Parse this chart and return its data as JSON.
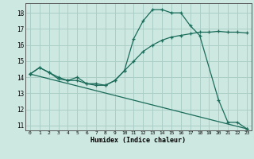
{
  "xlabel": "Humidex (Indice chaleur)",
  "bg_color": "#cce8e0",
  "grid_color": "#aacec6",
  "line_color": "#1a6b5a",
  "xlim": [
    -0.5,
    23.5
  ],
  "ylim": [
    10.7,
    18.6
  ],
  "yticks": [
    11,
    12,
    13,
    14,
    15,
    16,
    17,
    18
  ],
  "xticks": [
    0,
    1,
    2,
    3,
    4,
    5,
    6,
    7,
    8,
    9,
    10,
    11,
    12,
    13,
    14,
    15,
    16,
    17,
    18,
    19,
    20,
    21,
    22,
    23
  ],
  "series1_x": [
    0,
    1,
    2,
    3,
    4,
    5,
    6,
    7,
    8,
    9,
    10,
    11,
    12,
    13,
    14,
    15,
    16,
    17,
    18,
    20,
    21,
    22,
    23
  ],
  "series1_y": [
    14.2,
    14.6,
    14.3,
    14.0,
    13.8,
    13.8,
    13.6,
    13.6,
    13.5,
    13.8,
    14.4,
    16.4,
    17.5,
    18.2,
    18.2,
    18.0,
    18.0,
    17.2,
    16.6,
    12.6,
    11.2,
    11.2,
    10.8
  ],
  "series2_x": [
    0,
    1,
    2,
    3,
    4,
    5,
    6,
    7,
    8,
    9,
    10,
    11,
    12,
    13,
    14,
    15,
    16,
    17,
    18,
    19,
    20,
    21,
    22,
    23
  ],
  "series2_y": [
    14.2,
    14.6,
    14.3,
    13.9,
    13.8,
    14.0,
    13.6,
    13.5,
    13.5,
    13.8,
    14.4,
    15.0,
    15.6,
    16.0,
    16.3,
    16.5,
    16.6,
    16.7,
    16.8,
    16.8,
    16.85,
    16.8,
    16.8,
    16.75
  ],
  "series3_x": [
    0,
    23
  ],
  "series3_y": [
    14.2,
    10.8
  ]
}
